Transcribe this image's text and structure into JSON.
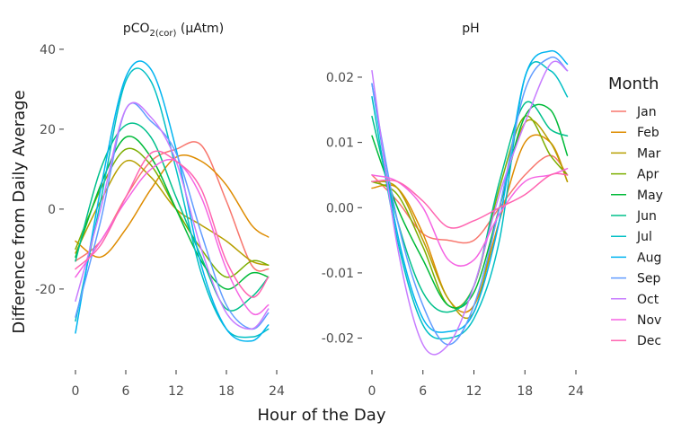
{
  "chart_data": {
    "type": "line",
    "xlabel": "Hour of the Day",
    "ylabel": "Difference from Daily Average",
    "x": [
      0,
      3,
      6,
      9,
      12,
      15,
      18,
      21,
      23
    ],
    "legend": {
      "title": "Month",
      "placement": "right",
      "entries": [
        "Jan",
        "Feb",
        "Mar",
        "Apr",
        "May",
        "Jun",
        "Jul",
        "Aug",
        "Sep",
        "Oct",
        "Nov",
        "Dec"
      ],
      "colors": [
        "#F8766D",
        "#DE8C00",
        "#B79F00",
        "#7CAE00",
        "#00BA38",
        "#00C08B",
        "#00BFC4",
        "#00B4F0",
        "#619CFF",
        "#C77CFF",
        "#F564E3",
        "#FF64B0"
      ]
    },
    "grid": false,
    "panels": [
      {
        "title_main": "pCO",
        "title_sub": "2(cor)",
        "title_rest": " (μAtm)",
        "ylim": [
          -38,
          42
        ],
        "yticks": [
          -20,
          0,
          20,
          40
        ],
        "xticks": [
          0,
          6,
          12,
          18,
          24
        ],
        "series": [
          {
            "name": "Jan",
            "values": [
              -13,
              -8,
              3,
              12,
              15,
              16,
              2,
              -14,
              -15
            ]
          },
          {
            "name": "Feb",
            "values": [
              -8,
              -12,
              -5,
              5,
              13,
              12,
              6,
              -4,
              -7
            ]
          },
          {
            "name": "Mar",
            "values": [
              -11,
              2,
              12,
              8,
              0,
              -4,
              -8,
              -13,
              -14
            ]
          },
          {
            "name": "Apr",
            "values": [
              -10,
              5,
              15,
              11,
              0,
              -10,
              -17,
              -13,
              -14
            ]
          },
          {
            "name": "May",
            "values": [
              -12,
              6,
              18,
              13,
              0,
              -13,
              -20,
              -16,
              -17
            ]
          },
          {
            "name": "Jun",
            "values": [
              -13,
              10,
              21,
              18,
              3,
              -12,
              -25,
              -22,
              -17
            ]
          },
          {
            "name": "Jul",
            "values": [
              -28,
              2,
              32,
              32,
              10,
              -16,
              -30,
              -32,
              -30
            ]
          },
          {
            "name": "Aug",
            "values": [
              -31,
              5,
              33,
              35,
              15,
              -14,
              -30,
              -33,
              -29
            ]
          },
          {
            "name": "Sep",
            "values": [
              -27,
              -3,
              25,
              22,
              14,
              -6,
              -24,
              -30,
              -26
            ]
          },
          {
            "name": "Oct",
            "values": [
              -23,
              0,
              25,
              23,
              12,
              -10,
              -26,
              -30,
              -25
            ]
          },
          {
            "name": "Nov",
            "values": [
              -17,
              -8,
              2,
              10,
              12,
              3,
              -15,
              -26,
              -24
            ]
          },
          {
            "name": "Dec",
            "values": [
              -15,
              -9,
              3,
              14,
              12,
              5,
              -13,
              -22,
              -17
            ]
          }
        ]
      },
      {
        "title_main": "pH",
        "title_sub": "",
        "title_rest": "",
        "ylim": [
          -0.0235,
          0.0255
        ],
        "yticks": [
          -0.02,
          -0.01,
          0.0,
          0.01,
          0.02
        ],
        "ytick_labels": [
          "-0.02",
          "-0.01",
          "0.00",
          "0.01",
          "0.02"
        ],
        "xticks": [
          0,
          6,
          12,
          18,
          24
        ],
        "series": [
          {
            "name": "Jan",
            "values": [
              0.005,
              0.001,
              -0.004,
              -0.005,
              -0.005,
              0.0,
              0.005,
              0.008,
              0.005
            ]
          },
          {
            "name": "Feb",
            "values": [
              0.003,
              0.003,
              -0.004,
              -0.014,
              -0.015,
              -0.002,
              0.01,
              0.01,
              0.004
            ]
          },
          {
            "name": "Mar",
            "values": [
              0.004,
              0.003,
              -0.005,
              -0.014,
              -0.016,
              0.0,
              0.013,
              0.01,
              0.004
            ]
          },
          {
            "name": "Apr",
            "values": [
              0.004,
              0.002,
              -0.006,
              -0.015,
              -0.012,
              0.003,
              0.014,
              0.008,
              0.005
            ]
          },
          {
            "name": "May",
            "values": [
              0.011,
              0.0,
              -0.008,
              -0.015,
              -0.013,
              0.0,
              0.014,
              0.015,
              0.008
            ]
          },
          {
            "name": "Jun",
            "values": [
              0.014,
              -0.002,
              -0.013,
              -0.016,
              -0.012,
              0.004,
              0.016,
              0.012,
              0.011
            ]
          },
          {
            "name": "Jul",
            "values": [
              0.017,
              -0.005,
              -0.018,
              -0.02,
              -0.017,
              -0.005,
              0.02,
              0.021,
              0.017
            ]
          },
          {
            "name": "Aug",
            "values": [
              0.019,
              -0.004,
              -0.017,
              -0.019,
              -0.016,
              -0.002,
              0.02,
              0.024,
              0.022
            ]
          },
          {
            "name": "Sep",
            "values": [
              0.019,
              -0.002,
              -0.015,
              -0.021,
              -0.015,
              0.0,
              0.018,
              0.023,
              0.021
            ]
          },
          {
            "name": "Oct",
            "values": [
              0.021,
              -0.006,
              -0.021,
              -0.021,
              -0.012,
              0.002,
              0.013,
              0.022,
              0.021
            ]
          },
          {
            "name": "Nov",
            "values": [
              0.005,
              0.004,
              0.0,
              -0.008,
              -0.008,
              -0.001,
              0.004,
              0.005,
              0.006
            ]
          },
          {
            "name": "Dec",
            "values": [
              0.004,
              0.004,
              0.001,
              -0.003,
              -0.002,
              0.0,
              0.002,
              0.005,
              0.005
            ]
          }
        ]
      }
    ]
  }
}
